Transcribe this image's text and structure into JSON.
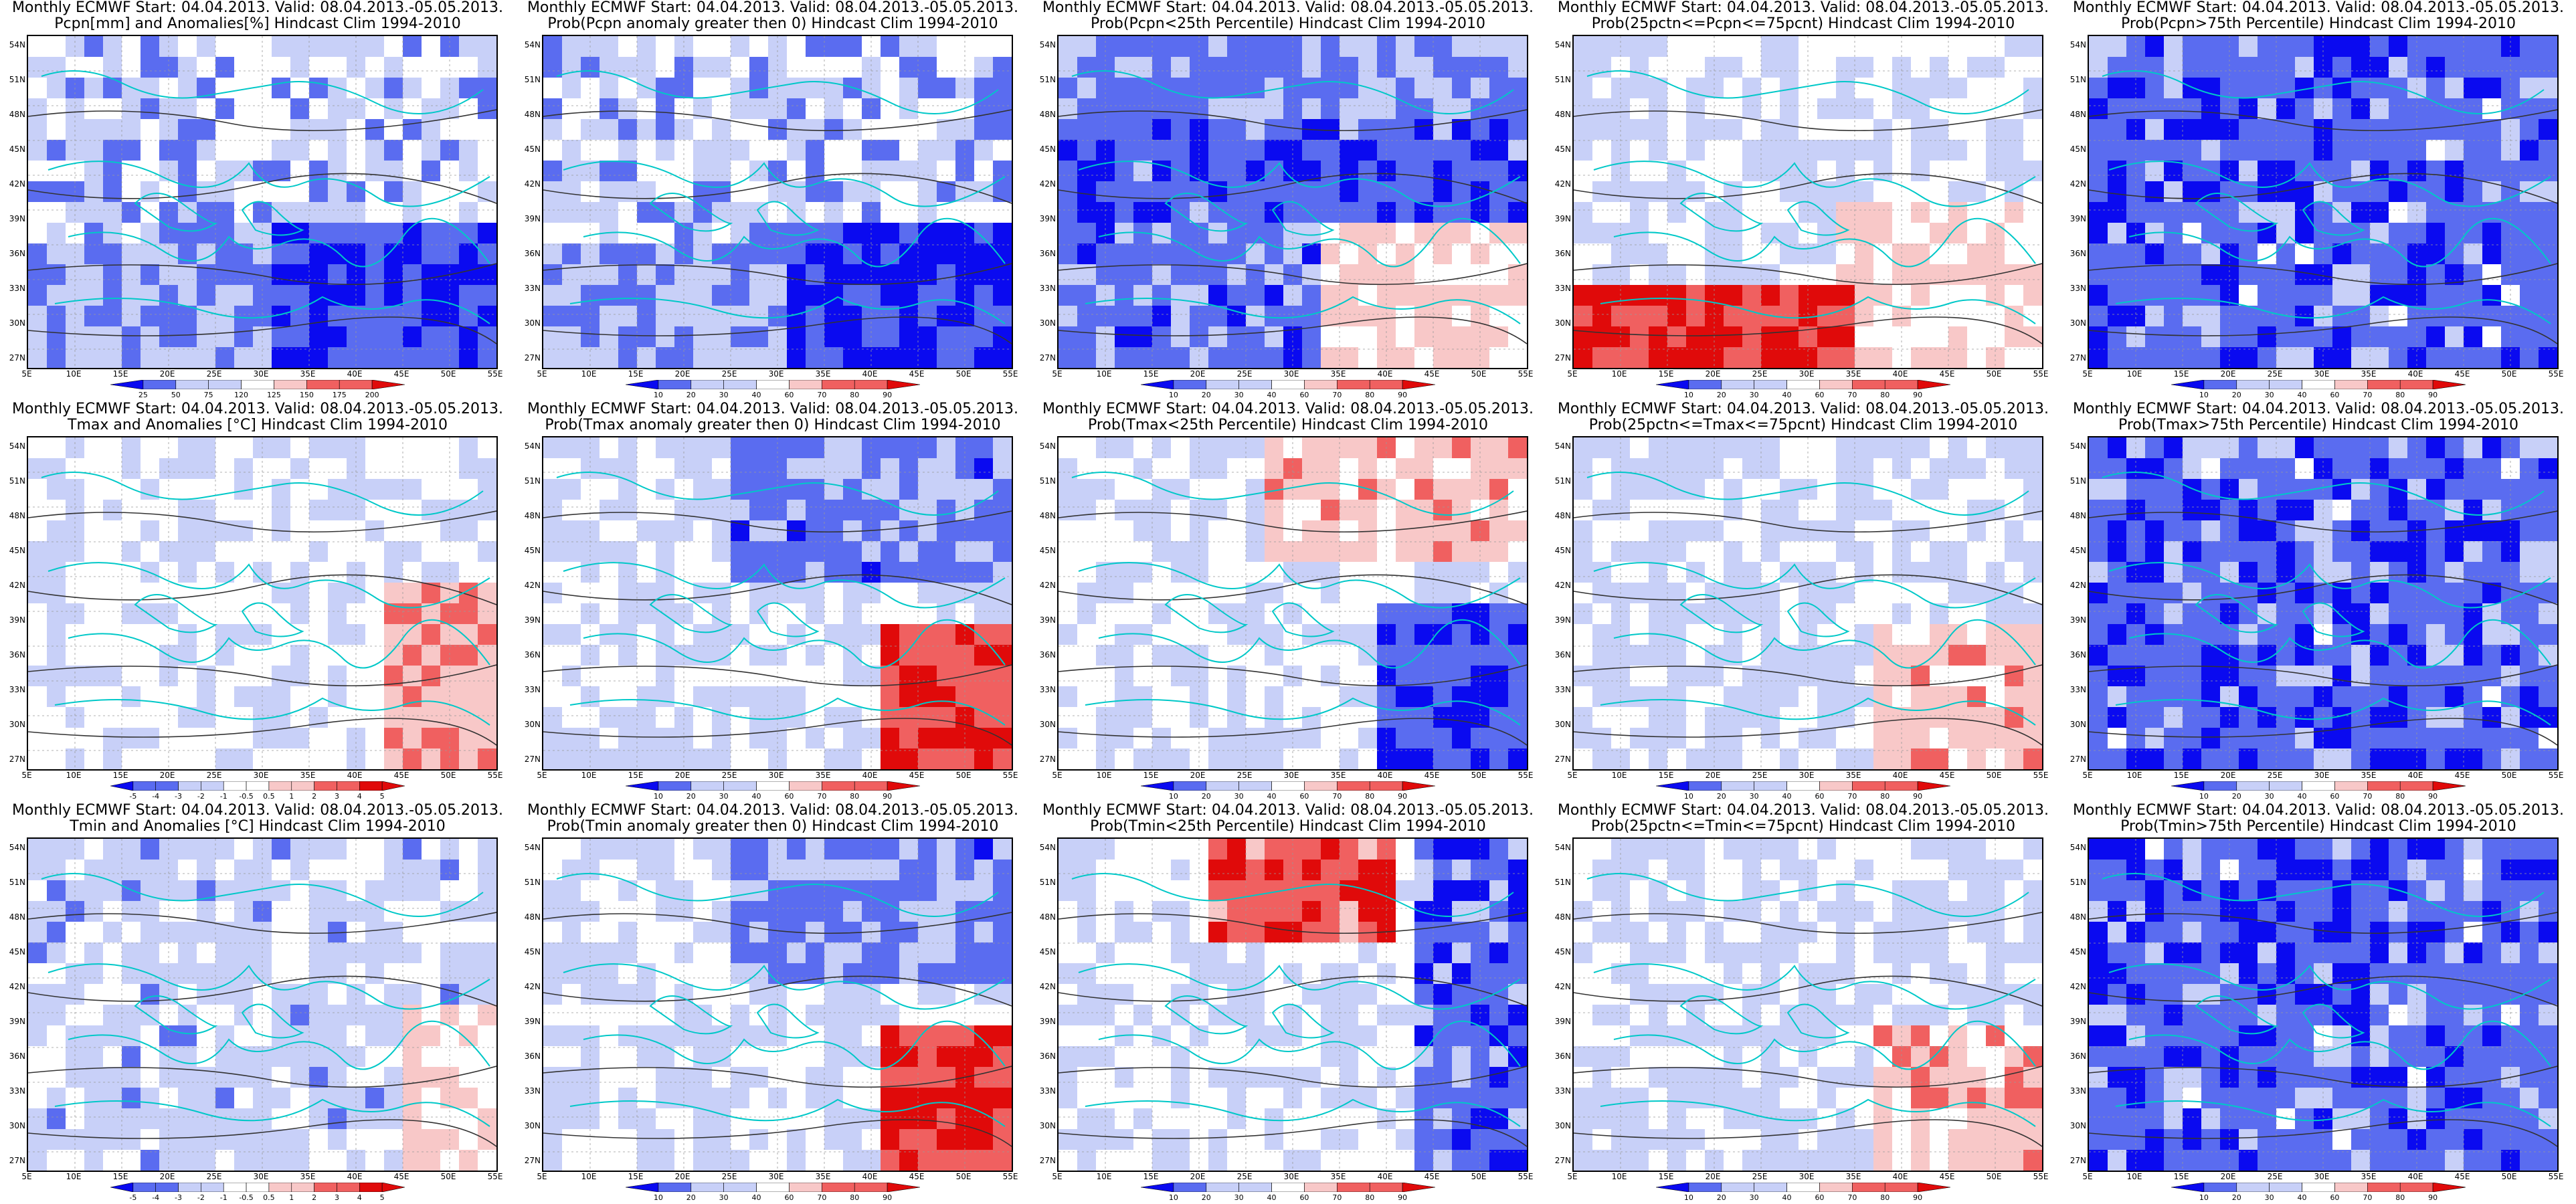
{
  "lat_labels": [
    "54N",
    "51N",
    "48N",
    "45N",
    "42N",
    "39N",
    "36N",
    "33N",
    "30N",
    "27N"
  ],
  "lon_labels": [
    "5E",
    "10E",
    "15E",
    "20E",
    "25E",
    "30E",
    "35E",
    "40E",
    "45E",
    "50E",
    "55E"
  ],
  "colors": {
    "blue_dark": "#0a0af0",
    "blue_mid": "#5a6cf0",
    "blue_light": "#c8d0f8",
    "white": "#ffffff",
    "red_light": "#f8c8c8",
    "red_mid": "#f06060",
    "red_dark": "#e00a0a",
    "coast": "#00c8c8",
    "contour": "#333333"
  },
  "panels": [
    {
      "t1": "Monthly ECMWF Start: 04.04.2013. Valid: 08.04.2013.-05.05.2013.",
      "t2": "Pcpn[mm] and Anomalies[%] Hindcast Clim 1994-2010",
      "scale": [
        "25",
        "50",
        "75",
        "120",
        "125",
        "150",
        "175",
        "200"
      ],
      "mood": "blue_south"
    },
    {
      "t1": "Monthly ECMWF Start: 04.04.2013. Valid: 08.04.2013.-05.05.2013.",
      "t2": "Prob(Pcpn anomaly greater then 0) Hindcast Clim 1994-2010",
      "scale": [
        "10",
        "20",
        "30",
        "40",
        "60",
        "70",
        "80",
        "90"
      ],
      "mood": "blue_south"
    },
    {
      "t1": "Monthly ECMWF Start: 04.04.2013. Valid: 08.04.2013.-05.05.2013.",
      "t2": "Prob(Pcpn<25th Percentile) Hindcast Clim 1994-2010",
      "scale": [
        "10",
        "20",
        "30",
        "40",
        "60",
        "70",
        "80",
        "90"
      ],
      "mood": "blue_center"
    },
    {
      "t1": "Monthly ECMWF Start: 04.04.2013. Valid: 08.04.2013.-05.05.2013.",
      "t2": "Prob(25pctn<=Pcpn<=75pcnt) Hindcast Clim 1994-2010",
      "scale": [
        "10",
        "20",
        "30",
        "40",
        "60",
        "70",
        "80",
        "90"
      ],
      "mood": "red_south"
    },
    {
      "t1": "Monthly ECMWF Start: 04.04.2013. Valid: 08.04.2013.-05.05.2013.",
      "t2": "Prob(Pcpn>75th Percentile) Hindcast Clim 1994-2010",
      "scale": [
        "10",
        "20",
        "30",
        "40",
        "60",
        "70",
        "80",
        "90"
      ],
      "mood": "blue_all"
    },
    {
      "t1": "Monthly ECMWF Start: 04.04.2013. Valid: 08.04.2013.-05.05.2013.",
      "t2": "Tmax and Anomalies [°C] Hindcast Clim 1994-2010",
      "scale": [
        "-5",
        "-4",
        "-3",
        "-2",
        "-1",
        "-0.5",
        "0.5",
        "1",
        "2",
        "3",
        "4",
        "5"
      ],
      "mood": "pale_red_se"
    },
    {
      "t1": "Monthly ECMWF Start: 04.04.2013. Valid: 08.04.2013.-05.05.2013.",
      "t2": "Prob(Tmax anomaly greater then 0) Hindcast Clim 1994-2010",
      "scale": [
        "10",
        "20",
        "30",
        "40",
        "60",
        "70",
        "80",
        "90"
      ],
      "mood": "mixed_red_se"
    },
    {
      "t1": "Monthly ECMWF Start: 04.04.2013. Valid: 08.04.2013.-05.05.2013.",
      "t2": "Prob(Tmax<25th Percentile) Hindcast Clim 1994-2010",
      "scale": [
        "10",
        "20",
        "30",
        "40",
        "60",
        "70",
        "80",
        "90"
      ],
      "mood": "mixed_blue_se"
    },
    {
      "t1": "Monthly ECMWF Start: 04.04.2013. Valid: 08.04.2013.-05.05.2013.",
      "t2": "Prob(25pctn<=Tmax<=75pcnt) Hindcast Clim 1994-2010",
      "scale": [
        "10",
        "20",
        "30",
        "40",
        "60",
        "70",
        "80",
        "90"
      ],
      "mood": "mixed_pale"
    },
    {
      "t1": "Monthly ECMWF Start: 04.04.2013. Valid: 08.04.2013.-05.05.2013.",
      "t2": "Prob(Tmax>75th Percentile) Hindcast Clim 1994-2010",
      "scale": [
        "10",
        "20",
        "30",
        "40",
        "60",
        "70",
        "80",
        "90"
      ],
      "mood": "blue_all"
    },
    {
      "t1": "Monthly ECMWF Start: 04.04.2013. Valid: 08.04.2013.-05.05.2013.",
      "t2": "Tmin and Anomalies [°C] Hindcast Clim 1994-2010",
      "scale": [
        "-5",
        "-4",
        "-3",
        "-2",
        "-1",
        "-0.5",
        "0.5",
        "1",
        "2",
        "3",
        "4",
        "5"
      ],
      "mood": "pale_blue"
    },
    {
      "t1": "Monthly ECMWF Start: 04.04.2013. Valid: 08.04.2013.-05.05.2013.",
      "t2": "Prob(Tmin anomaly greater then 0) Hindcast Clim 1994-2010",
      "scale": [
        "10",
        "20",
        "30",
        "40",
        "60",
        "70",
        "80",
        "90"
      ],
      "mood": "mixed_red_se"
    },
    {
      "t1": "Monthly ECMWF Start: 04.04.2013. Valid: 08.04.2013.-05.05.2013.",
      "t2": "Prob(Tmin<25th Percentile) Hindcast Clim 1994-2010",
      "scale": [
        "10",
        "20",
        "30",
        "40",
        "60",
        "70",
        "80",
        "90"
      ],
      "mood": "red_north"
    },
    {
      "t1": "Monthly ECMWF Start: 04.04.2013. Valid: 08.04.2013.-05.05.2013.",
      "t2": "Prob(25pctn<=Tmin<=75pcnt) Hindcast Clim 1994-2010",
      "scale": [
        "10",
        "20",
        "30",
        "40",
        "60",
        "70",
        "80",
        "90"
      ],
      "mood": "mixed_pale"
    },
    {
      "t1": "Monthly ECMWF Start: 04.04.2013. Valid: 08.04.2013.-05.05.2013.",
      "t2": "Prob(Tmin>75th Percentile) Hindcast Clim 1994-2010",
      "scale": [
        "10",
        "20",
        "30",
        "40",
        "60",
        "70",
        "80",
        "90"
      ],
      "mood": "blue_all"
    }
  ]
}
